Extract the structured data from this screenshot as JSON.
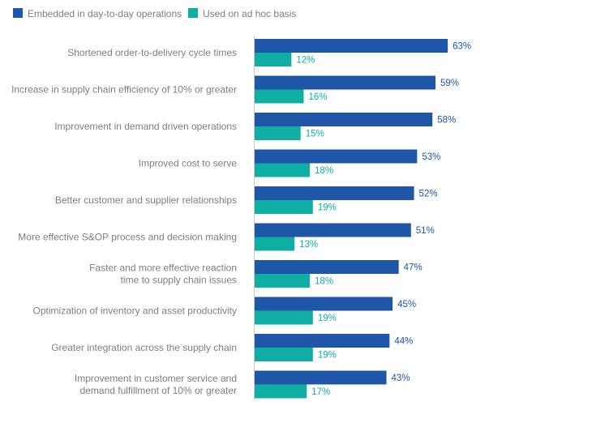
{
  "chart_data": {
    "type": "bar",
    "orientation": "horizontal",
    "value_suffix": "%",
    "legend_placement": "top-left",
    "grid": false,
    "categories": [
      [
        "Shortened order-to-delivery cycle times"
      ],
      [
        "Increase in supply chain efficiency of 10% or greater"
      ],
      [
        "Improvement in demand driven operations"
      ],
      [
        "Improved cost to serve"
      ],
      [
        "Better customer and supplier relationships"
      ],
      [
        "More effective S&OP process and decision making"
      ],
      [
        "Faster and more effective reaction",
        "time to supply chain issues"
      ],
      [
        "Optimization of inventory and asset productivity"
      ],
      [
        "Greater integration across the supply chain"
      ],
      [
        "Improvement in customer service and",
        "demand fulfillment of 10% or greater"
      ]
    ],
    "series": [
      {
        "name": "Embedded in day-to-day operations",
        "color": "#1f56a8",
        "values": [
          63,
          59,
          58,
          53,
          52,
          51,
          47,
          45,
          44,
          43
        ]
      },
      {
        "name": "Used on ad hoc basis",
        "color": "#10ada2",
        "values": [
          12,
          16,
          15,
          18,
          19,
          13,
          18,
          19,
          19,
          17
        ]
      }
    ],
    "xlim": [
      0,
      100
    ]
  }
}
